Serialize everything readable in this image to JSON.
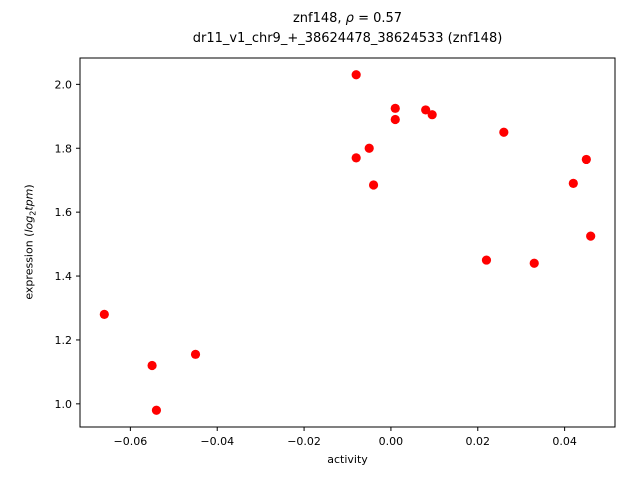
{
  "title": {
    "line1_prefix": "znf148, ",
    "line1_math": "ρ",
    "line1_suffix": " = 0.57",
    "line2": "dr11_v1_chr9_+_38624478_38624533 (znf148)"
  },
  "axes": {
    "xlabel": "activity",
    "ylabel_prefix": "expression (",
    "ylabel_math1": "log",
    "ylabel_sub": "2",
    "ylabel_math2": "tpm",
    "ylabel_suffix": ")"
  },
  "chart_data": {
    "type": "scatter",
    "title": "znf148, ρ = 0.57",
    "subtitle": "dr11_v1_chr9_+_38624478_38624533 (znf148)",
    "xlabel": "activity",
    "ylabel": "expression (log2 tpm)",
    "marker_color": "#ff0000",
    "marker_radius": 4.6,
    "grid": false,
    "legend": "none",
    "xlim": [
      -0.0716,
      0.0516
    ],
    "ylim": [
      0.9275,
      2.0825
    ],
    "xticks": [
      -0.06,
      -0.04,
      -0.02,
      0.0,
      0.02,
      0.04
    ],
    "xtick_labels": [
      "−0.06",
      "−0.04",
      "−0.02",
      "0.00",
      "0.02",
      "0.04"
    ],
    "yticks": [
      1.0,
      1.2,
      1.4,
      1.6,
      1.8,
      2.0
    ],
    "ytick_labels": [
      "1.0",
      "1.2",
      "1.4",
      "1.6",
      "1.8",
      "2.0"
    ],
    "points": [
      {
        "x": -0.066,
        "y": 1.28
      },
      {
        "x": -0.055,
        "y": 1.12
      },
      {
        "x": -0.054,
        "y": 0.98
      },
      {
        "x": -0.045,
        "y": 1.155
      },
      {
        "x": -0.008,
        "y": 2.03
      },
      {
        "x": -0.008,
        "y": 1.77
      },
      {
        "x": -0.005,
        "y": 1.8
      },
      {
        "x": -0.004,
        "y": 1.685
      },
      {
        "x": 0.001,
        "y": 1.925
      },
      {
        "x": 0.001,
        "y": 1.89
      },
      {
        "x": 0.008,
        "y": 1.92
      },
      {
        "x": 0.0095,
        "y": 1.905
      },
      {
        "x": 0.022,
        "y": 1.45
      },
      {
        "x": 0.026,
        "y": 1.85
      },
      {
        "x": 0.033,
        "y": 1.44
      },
      {
        "x": 0.042,
        "y": 1.69
      },
      {
        "x": 0.045,
        "y": 1.765
      },
      {
        "x": 0.046,
        "y": 1.525
      }
    ]
  }
}
